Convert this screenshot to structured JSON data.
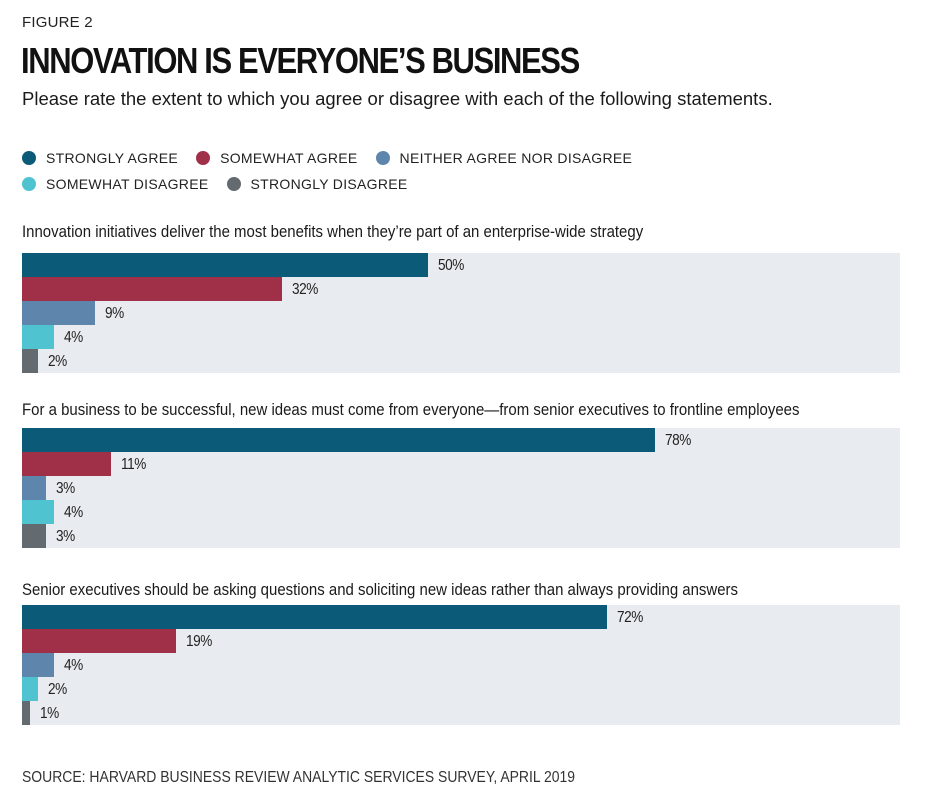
{
  "figure_label": "FIGURE 2",
  "title": "INNOVATION IS EVERYONE’S BUSINESS",
  "subtitle": "Please rate the extent to which you agree or disagree with each of the following statements.",
  "legend": [
    {
      "label": "STRONGLY AGREE",
      "color": "#0b5b78"
    },
    {
      "label": "SOMEWHAT AGREE",
      "color": "#a03048"
    },
    {
      "label": "NEITHER AGREE NOR DISAGREE",
      "color": "#5e86ad"
    },
    {
      "label": "SOMEWHAT DISAGREE",
      "color": "#4fc3cf"
    },
    {
      "label": "STRONGLY DISAGREE",
      "color": "#646b70"
    }
  ],
  "chart_data": {
    "type": "bar",
    "orientation": "horizontal",
    "categories": [
      "STRONGLY AGREE",
      "SOMEWHAT AGREE",
      "NEITHER AGREE NOR DISAGREE",
      "SOMEWHAT DISAGREE",
      "STRONGLY DISAGREE"
    ],
    "xlim": [
      0,
      100
    ],
    "unit": "%",
    "groups": [
      {
        "question": "Innovation initiatives deliver the most benefits when they’re part of an enterprise-wide strategy",
        "values": [
          50,
          32,
          9,
          4,
          2
        ],
        "labels": [
          "50%",
          "32%",
          "9%",
          "4%",
          "2%"
        ]
      },
      {
        "question": "For a business to be successful, new ideas must come from everyone—from senior executives to frontline employees",
        "values": [
          78,
          11,
          3,
          4,
          3
        ],
        "labels": [
          "78%",
          "11%",
          "3%",
          "4%",
          "3%"
        ]
      },
      {
        "question": "Senior executives should be asking questions and soliciting new ideas rather than always providing answers",
        "values": [
          72,
          19,
          4,
          2,
          1
        ],
        "labels": [
          "72%",
          "19%",
          "4%",
          "2%",
          "1%"
        ]
      }
    ]
  },
  "source": "SOURCE: HARVARD BUSINESS REVIEW ANALYTIC SERVICES SURVEY, APRIL 2019"
}
